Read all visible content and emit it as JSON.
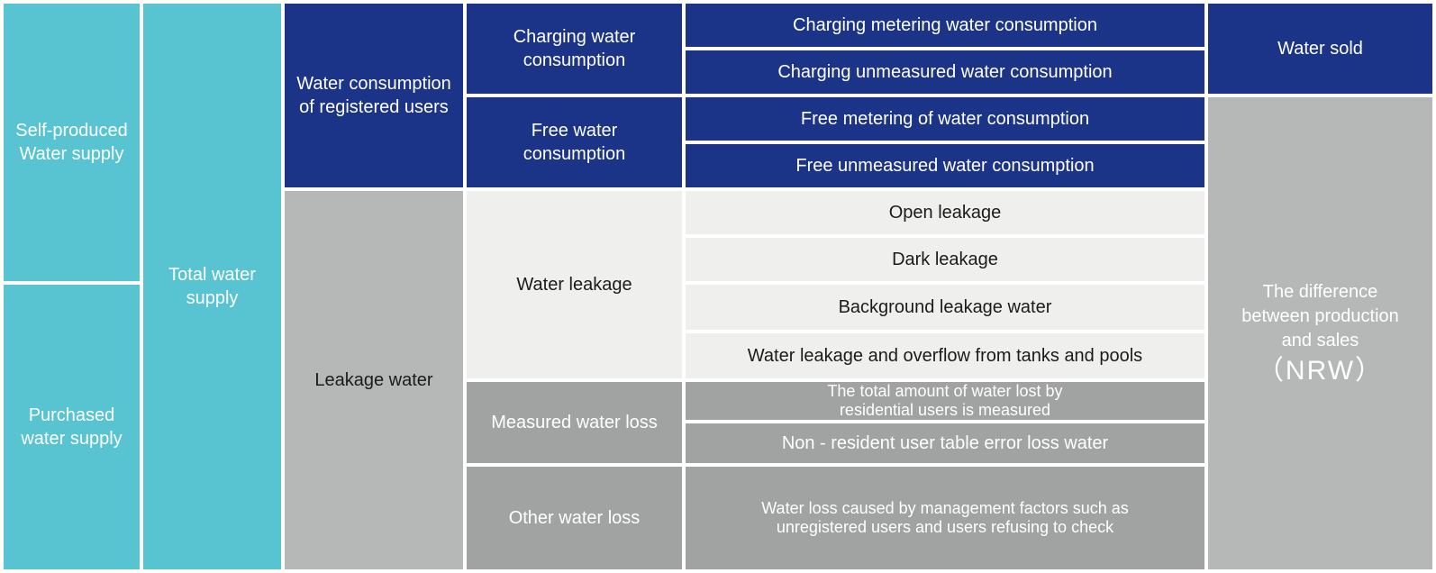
{
  "colors": {
    "teal": "#58c3d1",
    "navy": "#1c3487",
    "light_gray_row": "#efefee",
    "mid_gray": "#a0a3a2",
    "big_gray": "#b5b8b7",
    "gap_white": "#ffffff"
  },
  "supply": {
    "self_produced": "Self-produced\nWater supply",
    "purchased": "Purchased\nwater supply",
    "total": "Total water\nsupply"
  },
  "level2": {
    "registered_users": "Water consumption\nof registered users",
    "leakage_water": "Leakage water"
  },
  "level3": {
    "charging": "Charging water\nconsumption",
    "free": "Free water\nconsumption",
    "water_leakage": "Water leakage",
    "measured_loss": "Measured water loss",
    "other_loss": "Other water loss"
  },
  "detail_rows": [
    {
      "label": "Charging metering water consumption"
    },
    {
      "label": "Charging unmeasured water consumption"
    },
    {
      "label": "Free metering of water consumption"
    },
    {
      "label": "Free unmeasured water consumption"
    },
    {
      "label": "Open leakage"
    },
    {
      "label": "Dark leakage"
    },
    {
      "label": "Background leakage water"
    },
    {
      "label": "Water leakage and overflow from tanks and pools"
    },
    {
      "label": "The total amount of water lost by\nresidential users is measured"
    },
    {
      "label": "Non - resident user table error loss water"
    },
    {
      "label": "Water loss caused by management factors such as\nunregistered users and users refusing to check"
    }
  ],
  "result": {
    "water_sold": "Water sold",
    "nrw_text": "The difference\nbetween production\nand sales",
    "nrw_label": "（NRW）"
  }
}
